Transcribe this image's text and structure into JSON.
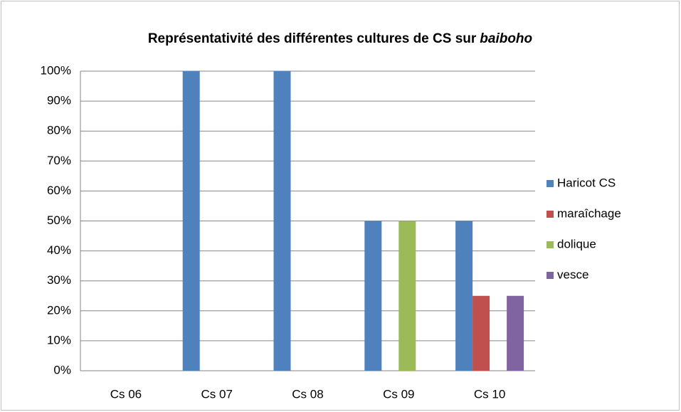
{
  "chart_data": {
    "type": "bar",
    "title_parts": [
      "Représentativité des différentes cultures de CS sur",
      "baiboho"
    ],
    "categories": [
      "Cs 06",
      "Cs 07",
      "Cs 08",
      "Cs 09",
      "Cs 10"
    ],
    "series": [
      {
        "name": "Haricot CS",
        "color": "#4f81bd",
        "values": [
          0,
          100,
          100,
          50,
          50
        ]
      },
      {
        "name": "maraîchage",
        "color": "#c0504d",
        "values": [
          0,
          0,
          0,
          0,
          25
        ]
      },
      {
        "name": "dolique",
        "color": "#9bbb59",
        "values": [
          0,
          0,
          0,
          50,
          0
        ]
      },
      {
        "name": "vesce",
        "color": "#8064a2",
        "values": [
          0,
          0,
          0,
          0,
          25
        ]
      }
    ],
    "ylim": [
      0,
      100
    ],
    "yticks": [
      {
        "value": 0,
        "label": "0%"
      },
      {
        "value": 10,
        "label": "10%"
      },
      {
        "value": 20,
        "label": "20%"
      },
      {
        "value": 30,
        "label": "30%"
      },
      {
        "value": 40,
        "label": "40%"
      },
      {
        "value": 50,
        "label": "50%"
      },
      {
        "value": 60,
        "label": "60%"
      },
      {
        "value": 70,
        "label": "70%"
      },
      {
        "value": 80,
        "label": "80%"
      },
      {
        "value": 90,
        "label": "90%"
      },
      {
        "value": 100,
        "label": "100%"
      }
    ],
    "grid": true,
    "legend": "right"
  }
}
